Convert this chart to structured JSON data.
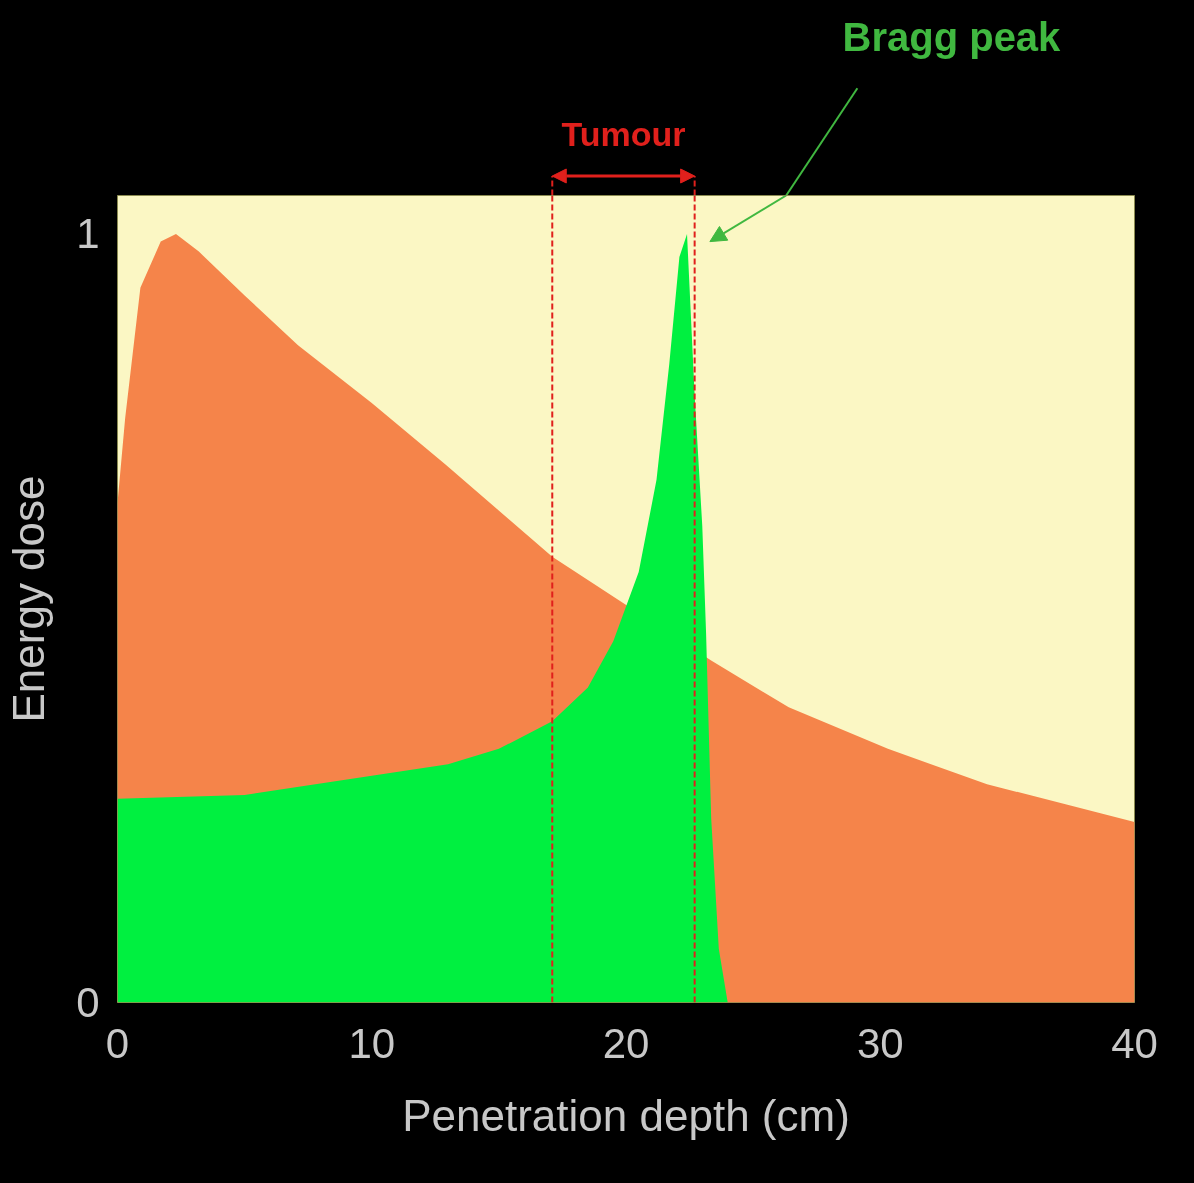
{
  "chart_data": {
    "type": "area",
    "xlabel": "Penetration depth (cm)",
    "ylabel": "Energy dose",
    "xlim": [
      0,
      40
    ],
    "xticks": [
      0,
      10,
      20,
      30,
      40
    ],
    "ylim": [
      0,
      1.05
    ],
    "yticks": [
      0,
      1
    ],
    "grid": false,
    "series": [
      {
        "color": "#f5844a",
        "x": [
          0,
          0.3,
          0.9,
          1.7,
          2.3,
          3.2,
          5,
          7.1,
          10,
          12.9,
          17.1,
          23.35,
          26.4,
          30.3,
          34.2,
          40
        ],
        "values": [
          0.65,
          0.76,
          0.93,
          0.99,
          1.0,
          0.977,
          0.92,
          0.855,
          0.78,
          0.7,
          0.58,
          0.445,
          0.384,
          0.33,
          0.284,
          0.235
        ]
      },
      {
        "color": "#00f040",
        "x": [
          0,
          5,
          10,
          13,
          15,
          17.1,
          18.5,
          19.5,
          20.5,
          21.2,
          21.7,
          22.1,
          22.4,
          22.7,
          23.0,
          23.15,
          23.35,
          23.65,
          24.0
        ],
        "values": [
          0.265,
          0.27,
          0.295,
          0.31,
          0.33,
          0.366,
          0.41,
          0.47,
          0.56,
          0.68,
          0.83,
          0.97,
          1.0,
          0.79,
          0.62,
          0.48,
          0.24,
          0.07,
          0
        ]
      }
    ],
    "ref_lines": [
      {
        "axis": "x",
        "value": 17.1,
        "color": "#e0201c",
        "line_style": "dashed"
      },
      {
        "axis": "x",
        "value": 22.7,
        "color": "#e0201c",
        "line_style": "dashed"
      }
    ],
    "annotations": [
      "Tumour",
      "Bragg peak"
    ]
  }
}
